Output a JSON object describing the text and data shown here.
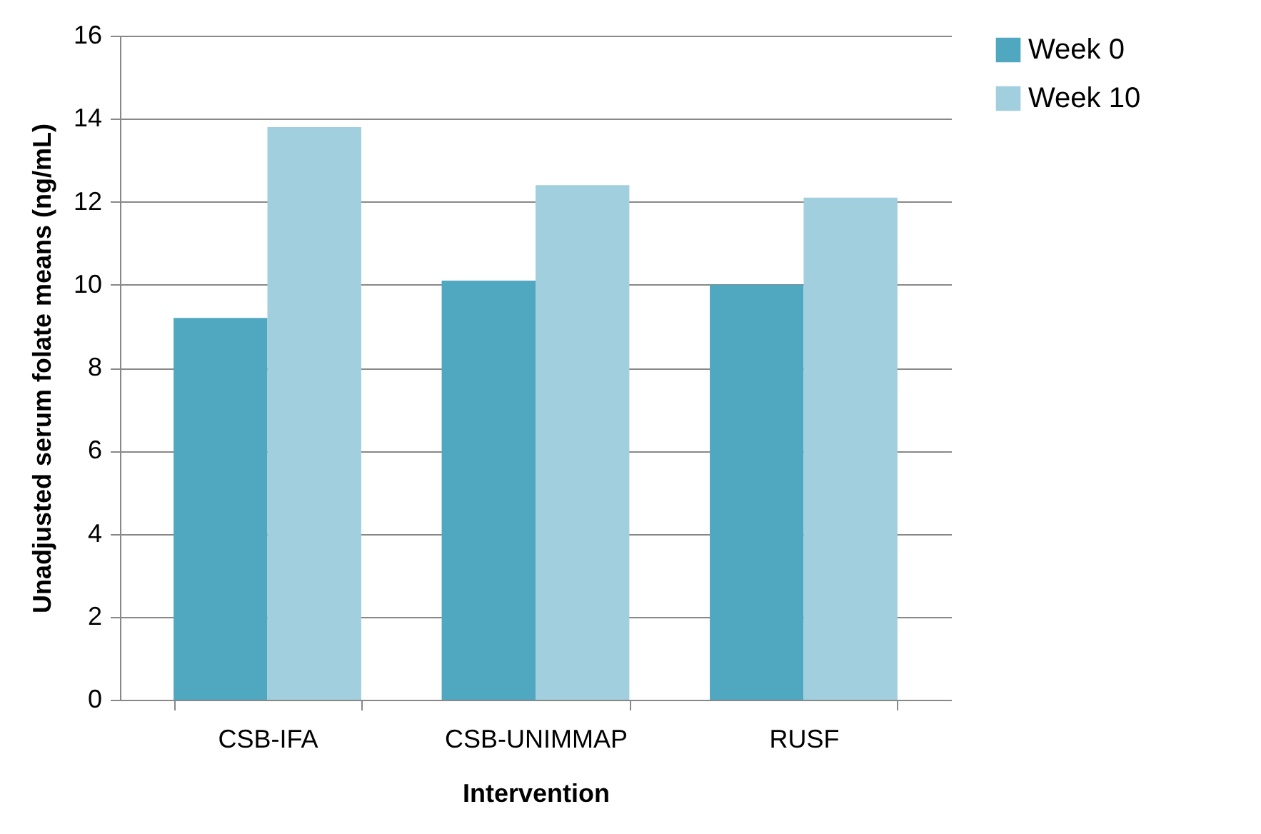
{
  "chart_data": {
    "type": "bar",
    "xlabel": "Intervention",
    "ylabel": "Unadjusted serum folate means (ng/mL)",
    "categories": [
      "CSB-IFA",
      "CSB-UNIMMAP",
      "RUSF"
    ],
    "series": [
      {
        "name": "Week 0",
        "color": "#4fa8c0",
        "values": [
          9.2,
          10.1,
          10.0
        ]
      },
      {
        "name": "Week 10",
        "color": "#a1cfde",
        "values": [
          13.8,
          12.4,
          12.1
        ]
      }
    ],
    "ylim": [
      0,
      16
    ],
    "yticks": [
      0,
      2,
      4,
      6,
      8,
      10,
      12,
      14,
      16
    ],
    "grid": "y",
    "legend": "right"
  }
}
